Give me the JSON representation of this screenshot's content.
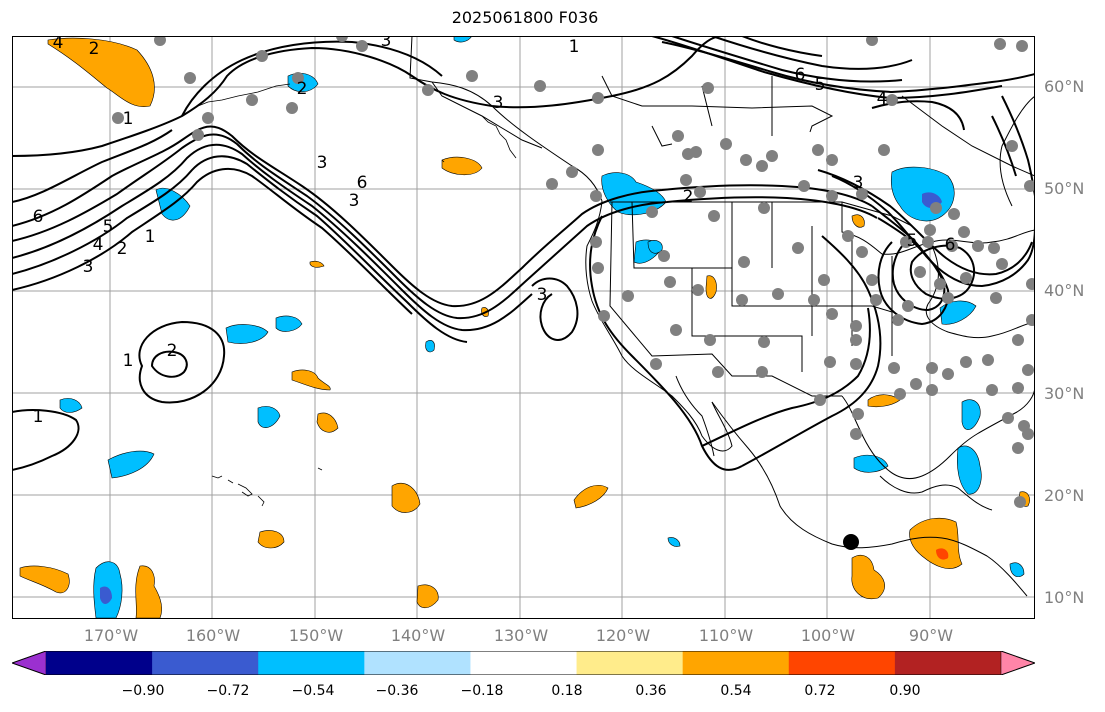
{
  "title": "2025061800 F036",
  "lat_labels": [
    "60°N",
    "50°N",
    "40°N",
    "30°N",
    "20°N",
    "10°N"
  ],
  "lon_labels": [
    "170°W",
    "160°W",
    "150°W",
    "140°W",
    "130°W",
    "120°W",
    "110°W",
    "100°W",
    "90°W"
  ],
  "colorbar": {
    "colors": [
      "#9b30d0",
      "#00008b",
      "#3a5bd0",
      "#00bfff",
      "#b0e2ff",
      "#ffffff",
      "#ffec8b",
      "#ffa500",
      "#ff4500",
      "#b22222",
      "#ff85a8"
    ],
    "tick_labels": [
      "−0.90",
      "−0.72",
      "−0.54",
      "−0.36",
      "−0.18",
      "0.18",
      "0.36",
      "0.54",
      "0.72",
      "0.90"
    ]
  },
  "contour_labels": {
    "c1": "4",
    "c2": "2",
    "c3": "1",
    "c4": "6",
    "c5": "5",
    "c6": "4",
    "c7": "3",
    "c8": "2",
    "c9": "1",
    "c10": "3",
    "c11": "3",
    "c12": "6",
    "c13": "3",
    "c14": "2",
    "c15": "3",
    "c16": "2",
    "c17": "1",
    "c18": "1",
    "c19": "6",
    "c20": "5",
    "c21": "4",
    "c22": "3",
    "c23": "5",
    "c24": "6",
    "c25": "2",
    "c26": "1",
    "c27": "3"
  }
}
